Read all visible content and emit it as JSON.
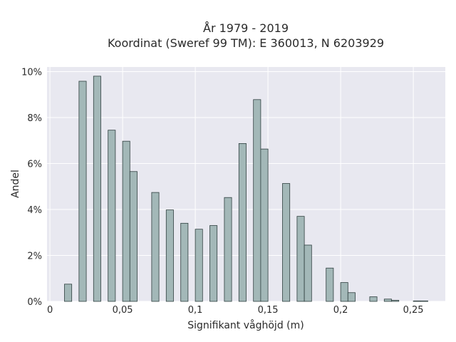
{
  "chart_data": {
    "type": "bar",
    "title": "År 1979 - 2019",
    "subtitle": "Koordinat (Sweref 99 TM): E 360013, N 6203929",
    "xlabel": "Signifikant våghöjd (m)",
    "ylabel": "Andel",
    "xlim": [
      -0.002,
      0.272
    ],
    "ylim": [
      0,
      10.2
    ],
    "grid": true,
    "bar_width": 0.005,
    "x_ticks": [
      {
        "value": 0,
        "label": "0"
      },
      {
        "value": 0.05,
        "label": "0,05"
      },
      {
        "value": 0.1,
        "label": "0,1"
      },
      {
        "value": 0.15,
        "label": "0,15"
      },
      {
        "value": 0.2,
        "label": "0,2"
      },
      {
        "value": 0.25,
        "label": "0,25"
      }
    ],
    "y_ticks": [
      {
        "value": 0,
        "label": "0%"
      },
      {
        "value": 2,
        "label": "2%"
      },
      {
        "value": 4,
        "label": "4%"
      },
      {
        "value": 6,
        "label": "6%"
      },
      {
        "value": 8,
        "label": "8%"
      },
      {
        "value": 10,
        "label": "10%"
      }
    ],
    "bar_color": "#a3b8b8",
    "bar_edge_color": "#2f3f3f",
    "background_color": "#e8e8f0",
    "bars": [
      {
        "x": 0.0125,
        "y": 0.75
      },
      {
        "x": 0.0225,
        "y": 9.58
      },
      {
        "x": 0.0325,
        "y": 9.8
      },
      {
        "x": 0.0425,
        "y": 7.45
      },
      {
        "x": 0.0525,
        "y": 6.97
      },
      {
        "x": 0.0575,
        "y": 5.65
      },
      {
        "x": 0.0725,
        "y": 4.74
      },
      {
        "x": 0.0825,
        "y": 3.98
      },
      {
        "x": 0.0925,
        "y": 3.4
      },
      {
        "x": 0.1025,
        "y": 3.14
      },
      {
        "x": 0.1125,
        "y": 3.3
      },
      {
        "x": 0.1225,
        "y": 4.52
      },
      {
        "x": 0.1325,
        "y": 6.87
      },
      {
        "x": 0.1425,
        "y": 8.78
      },
      {
        "x": 0.1475,
        "y": 6.63
      },
      {
        "x": 0.1625,
        "y": 5.13
      },
      {
        "x": 0.1725,
        "y": 3.7
      },
      {
        "x": 0.1775,
        "y": 2.45
      },
      {
        "x": 0.1925,
        "y": 1.45
      },
      {
        "x": 0.2025,
        "y": 0.82
      },
      {
        "x": 0.2075,
        "y": 0.38
      },
      {
        "x": 0.2225,
        "y": 0.2
      },
      {
        "x": 0.2325,
        "y": 0.1
      },
      {
        "x": 0.2375,
        "y": 0.05
      },
      {
        "x": 0.2525,
        "y": 0.02
      },
      {
        "x": 0.2575,
        "y": 0.02
      }
    ]
  }
}
